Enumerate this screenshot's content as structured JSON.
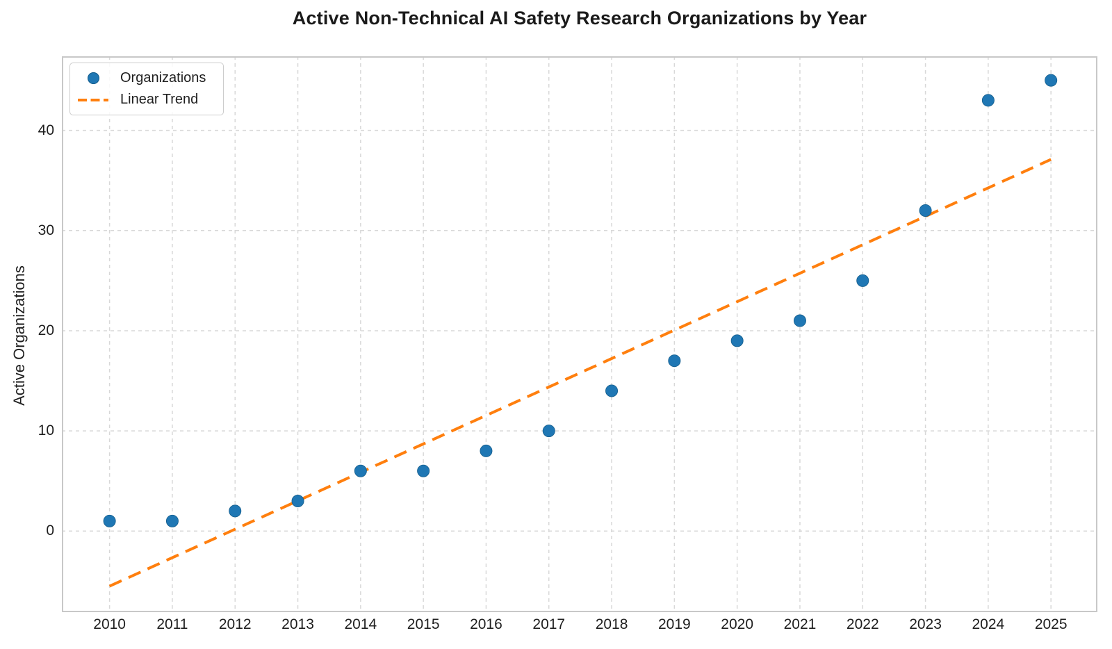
{
  "chart_data": {
    "type": "scatter",
    "title": "Active Non-Technical AI Safety Research Organizations by Year",
    "xlabel": "",
    "ylabel": "Active Organizations",
    "x": [
      2010,
      2011,
      2012,
      2013,
      2014,
      2015,
      2016,
      2017,
      2018,
      2019,
      2020,
      2021,
      2022,
      2023,
      2024,
      2025
    ],
    "series": [
      {
        "name": "Organizations",
        "type": "scatter",
        "color": "#1f77b4",
        "values": [
          1,
          1,
          2,
          3,
          6,
          6,
          8,
          10,
          14,
          17,
          19,
          21,
          25,
          32,
          43,
          45
        ]
      },
      {
        "name": "Linear Trend",
        "type": "dashed-line",
        "color": "#ff7f0e",
        "x": [
          2010,
          2025
        ],
        "y": [
          -5.5,
          37.1
        ]
      }
    ],
    "xticks": [
      2010,
      2011,
      2012,
      2013,
      2014,
      2015,
      2016,
      2017,
      2018,
      2019,
      2020,
      2021,
      2022,
      2023,
      2024,
      2025
    ],
    "yticks": [
      0,
      10,
      20,
      30,
      40
    ],
    "xlim": [
      2009.24,
      2025.74
    ],
    "ylim": [
      -8.1,
      47.4
    ],
    "grid": true,
    "legend_position": "upper left"
  },
  "colors": {
    "point": "#1f77b4",
    "point_edge": "#155d8b",
    "trend": "#ff7f0e",
    "grid": "#d8d8d8",
    "spine": "#c8c8c8",
    "text": "#1f1f1f"
  }
}
